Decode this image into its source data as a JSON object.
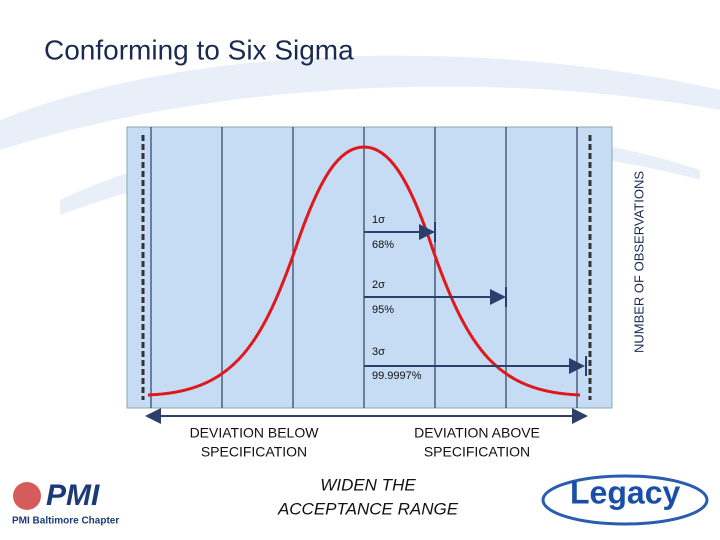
{
  "title": "Conforming to Six Sigma",
  "axis_label": "NUMBER OF OBSERVATIONS",
  "sigma_labels": [
    {
      "sigma": "1σ",
      "percent": "68%"
    },
    {
      "sigma": "2σ",
      "percent": "95%"
    },
    {
      "sigma": "3σ",
      "percent": "99.9997%"
    }
  ],
  "below_label": [
    "DEVIATION BELOW",
    "SPECIFICATION"
  ],
  "above_label": [
    "DEVIATION ABOVE",
    "SPECIFICATION"
  ],
  "caption": [
    "WIDEN THE",
    "ACCEPTANCE RANGE"
  ],
  "logos": {
    "pmi": "PMI",
    "pmi_chapter": "PMI Baltimore Chapter",
    "legacy": "Legacy"
  }
}
